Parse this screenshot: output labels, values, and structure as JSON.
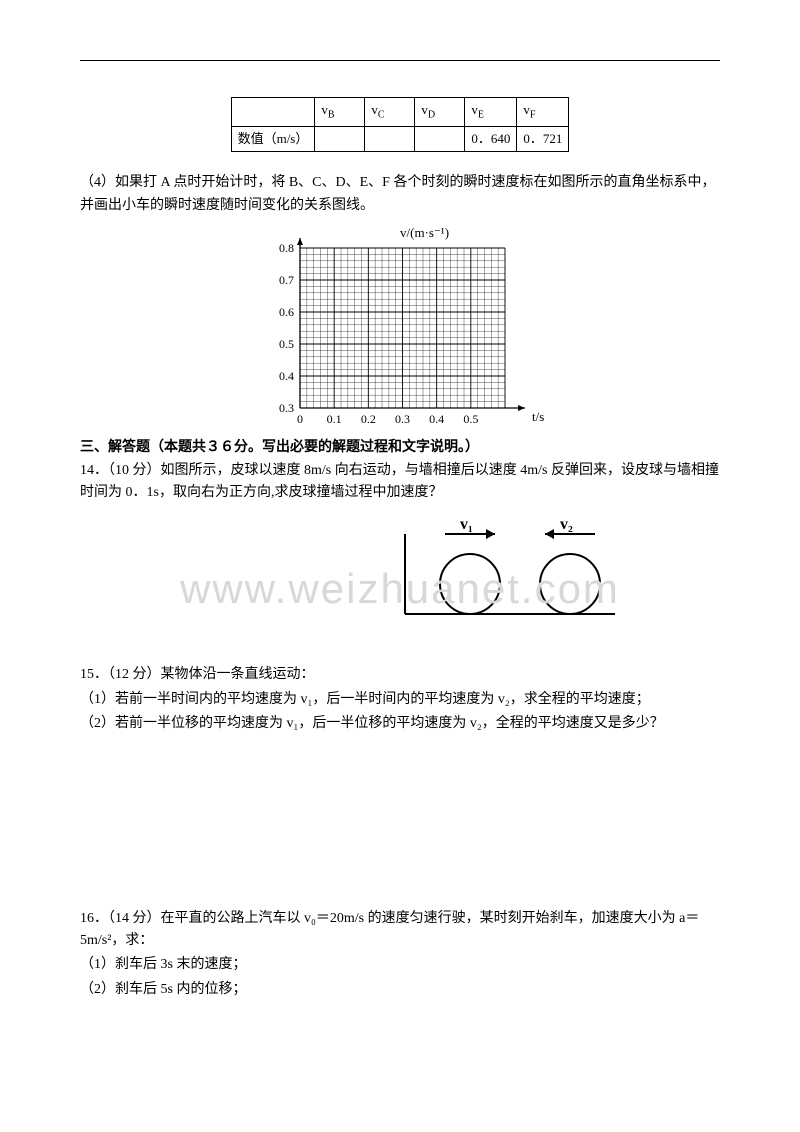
{
  "hr_color": "#000000",
  "table": {
    "row1": {
      "c0": "",
      "c1": "vB",
      "c2": "vC",
      "c3": "vD",
      "c4": "vE",
      "c5": "vF"
    },
    "row2": {
      "c0": "数值（m/s）",
      "c1": "",
      "c2": "",
      "c3": "",
      "c4": "0．640",
      "c5": "0．721"
    }
  },
  "p4a": "（4）如果打 A 点时开始计时，将 B、C、D、E、F 各个时刻的瞬时速度标在如图所示的直角坐标系中，并画出小车的瞬时速度随时间变化的关系图线。",
  "chart": {
    "ylabel": "v/(m·s⁻¹)",
    "xlabel": "t/s",
    "ymin": 0.3,
    "ymax": 0.8,
    "xmin": 0,
    "xmax": 0.55,
    "yticks": [
      "0.3",
      "0.4",
      "0.5",
      "0.6",
      "0.7",
      "0.8"
    ],
    "xticks": [
      "0",
      "0.1",
      "0.2",
      "0.3",
      "0.4",
      "0.5"
    ],
    "grid_color": "#000000",
    "background_color": "#ffffff"
  },
  "section3": "三、解答题（本题共３６分。写出必要的解题过程和文字说明。）",
  "q14_l1": "14．（10 分）如图所示，皮球以速度 8m/s 向右运动，与墙相撞后以速度 4m/s 反弹回来，设皮球与墙相撞时间为 0．1s，取向右为正方向,求皮球撞墙过程中加速度？",
  "q14fig": {
    "v1": "v₁",
    "v2": "v₂",
    "fill": "#ffffff",
    "stroke": "#000000"
  },
  "q15_l1": "15．（12 分）某物体沿一条直线运动：",
  "q15_l2": "（1）若前一半时间内的平均速度为 v₁，后一半时间内的平均速度为 v₂，求全程的平均速度；",
  "q15_l3": "（2）若前一半位移的平均速度为 v₁，后一半位移的平均速度为 v₂，全程的平均速度又是多少？",
  "q16_l1": "16．（14 分）在平直的公路上汽车以 v₀＝20m/s 的速度匀速行驶，某时刻开始刹车，加速度大小为 a＝5m/s²，求：",
  "q16_l2": "（1）刹车后 3s 末的速度；",
  "q16_l3": "（2）刹车后 5s 内的位移；",
  "watermark": "www.weizhuanet.com"
}
